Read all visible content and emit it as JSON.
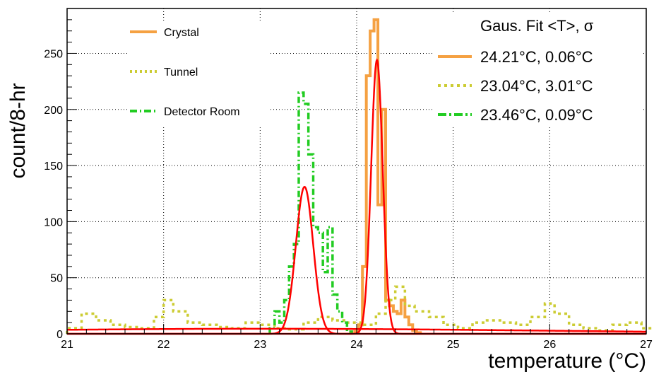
{
  "chart_data": {
    "type": "line",
    "xlabel": "temperature (°C)",
    "ylabel": "count/8-hr",
    "xlim": [
      21,
      27
    ],
    "ylim": [
      0,
      290
    ],
    "xticks": [
      21,
      22,
      23,
      24,
      25,
      26,
      27
    ],
    "yticks": [
      0,
      50,
      100,
      150,
      200,
      250
    ],
    "grid": true,
    "legend": {
      "placement": "top-left",
      "entries": [
        {
          "name": "Crystal",
          "color": "#f5a142",
          "style": "solid"
        },
        {
          "name": "Tunnel",
          "color": "#cccc33",
          "style": "dotted"
        },
        {
          "name": "Detector Room",
          "color": "#22cc22",
          "style": "dashdot"
        }
      ]
    },
    "fit_legend": {
      "placement": "top-right",
      "title": "Gaus. Fit <T>, σ",
      "entries": [
        {
          "label": "24.21°C, 0.06°C",
          "color": "#f5a142",
          "style": "solid"
        },
        {
          "label": "23.04°C, 3.01°C",
          "color": "#cccc33",
          "style": "dotted"
        },
        {
          "label": "23.46°C, 0.09°C",
          "color": "#22cc22",
          "style": "dashdot"
        }
      ]
    },
    "series": [
      {
        "name": "Crystal",
        "kind": "step",
        "color": "#f5a142",
        "x": [
          23.98,
          24.02,
          24.06,
          24.1,
          24.14,
          24.18,
          24.22,
          24.26,
          24.3,
          24.34,
          24.38,
          24.42,
          24.46,
          24.5,
          24.54,
          24.58,
          24.62
        ],
        "values": [
          2,
          8,
          60,
          230,
          270,
          280,
          115,
          200,
          30,
          25,
          20,
          18,
          30,
          15,
          8,
          3,
          1
        ]
      },
      {
        "name": "Tunnel",
        "kind": "step",
        "color": "#cccc33",
        "x": [
          21.0,
          21.15,
          21.3,
          21.45,
          21.6,
          21.75,
          21.9,
          22.0,
          22.1,
          22.25,
          22.4,
          22.55,
          22.7,
          22.85,
          23.0,
          23.15,
          23.3,
          23.45,
          23.6,
          23.75,
          23.9,
          24.05,
          24.2,
          24.3,
          24.4,
          24.5,
          24.6,
          24.75,
          24.9,
          25.05,
          25.2,
          25.35,
          25.5,
          25.65,
          25.8,
          25.95,
          26.05,
          26.2,
          26.35,
          26.5,
          26.65,
          26.8,
          26.95
        ],
        "values": [
          5,
          18,
          12,
          8,
          6,
          5,
          15,
          30,
          20,
          10,
          8,
          6,
          5,
          10,
          8,
          5,
          4,
          10,
          15,
          12,
          10,
          8,
          18,
          30,
          42,
          25,
          20,
          15,
          8,
          5,
          10,
          12,
          10,
          8,
          15,
          27,
          18,
          8,
          5,
          3,
          8,
          10,
          5
        ]
      },
      {
        "name": "Detector Room",
        "kind": "step",
        "color": "#22cc22",
        "x": [
          23.1,
          23.15,
          23.2,
          23.25,
          23.3,
          23.35,
          23.4,
          23.45,
          23.5,
          23.55,
          23.6,
          23.65,
          23.7,
          23.75,
          23.8,
          23.85,
          23.9
        ],
        "values": [
          5,
          20,
          10,
          30,
          60,
          80,
          215,
          205,
          160,
          95,
          90,
          55,
          95,
          35,
          20,
          10,
          2
        ]
      },
      {
        "name": "Crystal fit",
        "kind": "gauss",
        "color": "#ff0000",
        "amplitude": 244,
        "mean": 24.21,
        "sigma": 0.06
      },
      {
        "name": "Detector Room fit",
        "kind": "gauss",
        "color": "#ff0000",
        "amplitude": 131,
        "mean": 23.46,
        "sigma": 0.09
      },
      {
        "name": "Tunnel fit",
        "kind": "gauss",
        "color": "#ff0000",
        "amplitude": 4.5,
        "mean": 23.04,
        "sigma": 3.01
      }
    ]
  }
}
